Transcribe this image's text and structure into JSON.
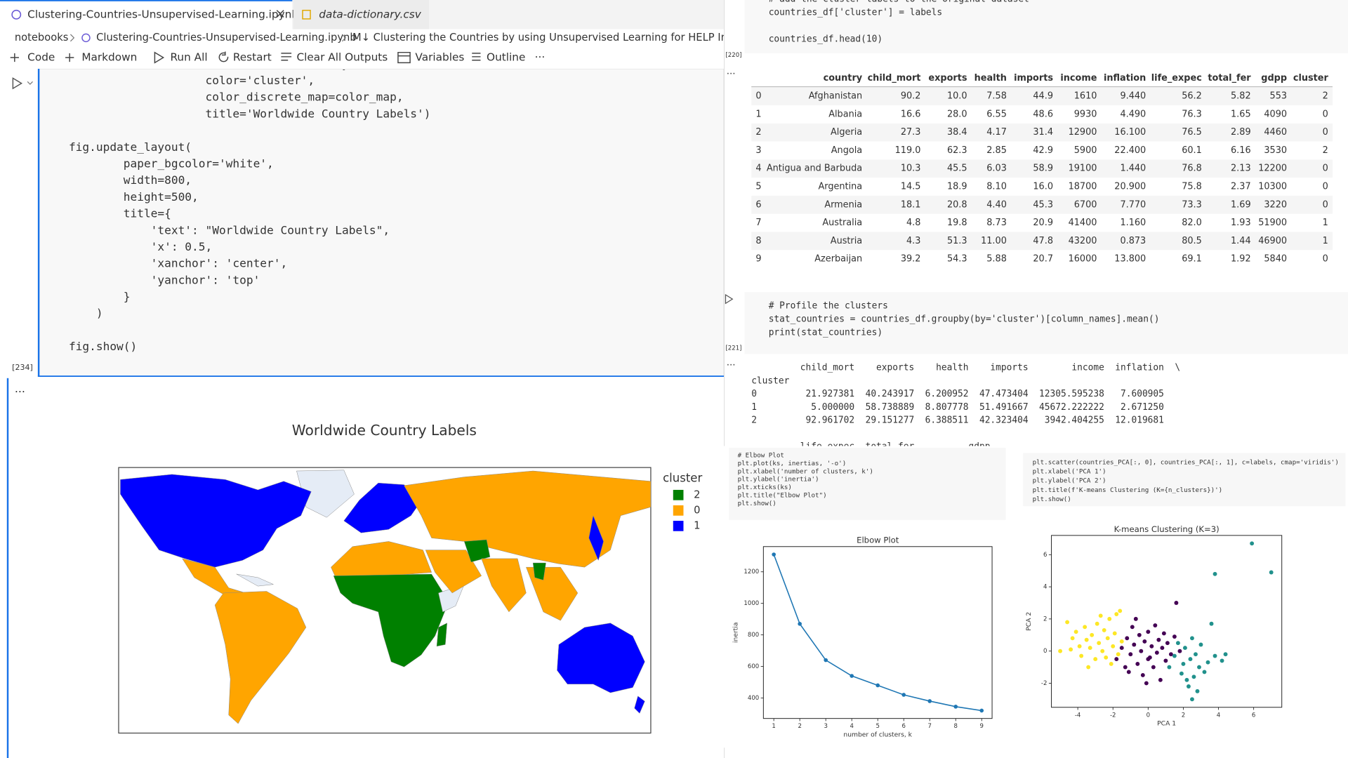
{
  "tabs": [
    "Clustering-Countries-Unsupervised-Learning.ipynb",
    "data-dictionary.csv"
  ],
  "breadcrumb": [
    "notebooks",
    "Clustering-Countries-Unsupervised-Learning.ipynb",
    "M↓ Clustering the Countries by using Unsupervised Learning for HELP International"
  ],
  "toolbar": [
    "Code",
    "Markdown",
    "Run All",
    "Restart",
    "Clear All Outputs",
    "Variables",
    "Outline",
    "···"
  ],
  "left_cell": {
    "code": [
      "                    locationmode='country names',",
      "                    color='cluster',",
      "                    color_discrete_map=color_map,",
      "                    title='Worldwide Country Labels')",
      "",
      "fig.update_layout(",
      "        paper_bgcolor='white',",
      "        width=800,",
      "        height=500,",
      "        title={",
      "            'text': \"Worldwide Country Labels\",",
      "            'x': 0.5,",
      "            'xanchor': 'center',",
      "            'yanchor': 'top'",
      "        }",
      "    )",
      "",
      "fig.show()"
    ],
    "exec_count": "[234]",
    "output_marker": "..."
  },
  "map": {
    "title": "Worldwide Country Labels",
    "legend_title": "cluster",
    "legend": [
      {
        "label": "2",
        "color": "#008000"
      },
      {
        "label": "0",
        "color": "#ffa500"
      },
      {
        "label": "1",
        "color": "#0000ff"
      }
    ]
  },
  "right_cell1": {
    "code": [
      "# add the cluster labels to the original dataset",
      "countries_df['cluster'] = labels",
      "",
      "countries_df.head(10)"
    ],
    "exec_count": "[220]",
    "output_marker": "..."
  },
  "table": {
    "columns": [
      "country",
      "child_mort",
      "exports",
      "health",
      "imports",
      "income",
      "inflation",
      "life_expec",
      "total_fer",
      "gdpp",
      "cluster"
    ],
    "rows": [
      [
        "0",
        "Afghanistan",
        "90.2",
        "10.0",
        "7.58",
        "44.9",
        "1610",
        "9.440",
        "56.2",
        "5.82",
        "553",
        "2"
      ],
      [
        "1",
        "Albania",
        "16.6",
        "28.0",
        "6.55",
        "48.6",
        "9930",
        "4.490",
        "76.3",
        "1.65",
        "4090",
        "0"
      ],
      [
        "2",
        "Algeria",
        "27.3",
        "38.4",
        "4.17",
        "31.4",
        "12900",
        "16.100",
        "76.5",
        "2.89",
        "4460",
        "0"
      ],
      [
        "3",
        "Angola",
        "119.0",
        "62.3",
        "2.85",
        "42.9",
        "5900",
        "22.400",
        "60.1",
        "6.16",
        "3530",
        "2"
      ],
      [
        "4",
        "Antigua and Barbuda",
        "10.3",
        "45.5",
        "6.03",
        "58.9",
        "19100",
        "1.440",
        "76.8",
        "2.13",
        "12200",
        "0"
      ],
      [
        "5",
        "Argentina",
        "14.5",
        "18.9",
        "8.10",
        "16.0",
        "18700",
        "20.900",
        "75.8",
        "2.37",
        "10300",
        "0"
      ],
      [
        "6",
        "Armenia",
        "18.1",
        "20.8",
        "4.40",
        "45.3",
        "6700",
        "7.770",
        "73.3",
        "1.69",
        "3220",
        "0"
      ],
      [
        "7",
        "Australia",
        "4.8",
        "19.8",
        "8.73",
        "20.9",
        "41400",
        "1.160",
        "82.0",
        "1.93",
        "51900",
        "1"
      ],
      [
        "8",
        "Austria",
        "4.3",
        "51.3",
        "11.00",
        "47.8",
        "43200",
        "0.873",
        "80.5",
        "1.44",
        "46900",
        "1"
      ],
      [
        "9",
        "Azerbaijan",
        "39.2",
        "54.3",
        "5.88",
        "20.7",
        "16000",
        "13.800",
        "69.1",
        "1.92",
        "5840",
        "0"
      ]
    ]
  },
  "right_cell2": {
    "code": [
      "# Profile the clusters",
      "stat_countries = countries_df.groupby(by='cluster')[column_names].mean()",
      "print(stat_countries)"
    ],
    "exec_count": "[221]",
    "output_marker": "..."
  },
  "output": [
    "         child_mort    exports    health    imports        income  inflation  \\",
    "cluster",
    "0         21.927381  40.243917  6.200952  47.473404  12305.595238   7.600905",
    "1          5.000000  58.738889  8.807778  51.491667  45672.222222   2.671250",
    "2         92.961702  29.151277  6.388511  42.323404   3942.404255  12.019681",
    "",
    "         life_expec  total_fer          gdpp"
  ],
  "elbow_code": [
    "# Elbow Plot",
    "plt.plot(ks, inertias, '-o')",
    "plt.xlabel('number of clusters, k')",
    "plt.ylabel('inertia')",
    "plt.xticks(ks)",
    "plt.title(\"Elbow Plot\")",
    "plt.show()"
  ],
  "scatter_code": [
    "plt.scatter(countries_PCA[:, 0], countries_PCA[:, 1], c=labels, cmap='viridis')",
    "plt.xlabel('PCA 1')",
    "plt.ylabel('PCA 2')",
    "plt.title(f'K-means Clustering (K={n_clusters})')",
    "plt.show()"
  ],
  "chart_data": [
    {
      "type": "line",
      "title": "Elbow Plot",
      "xlabel": "number of clusters, k",
      "ylabel": "inertia",
      "x": [
        1,
        2,
        3,
        4,
        5,
        6,
        7,
        8,
        9
      ],
      "series": [
        {
          "color": "#1f77b4",
          "values": [
            1310,
            870,
            640,
            540,
            480,
            420,
            380,
            345,
            320
          ]
        }
      ],
      "xlim": [
        0.6,
        9.4
      ],
      "ylim": [
        270,
        1360
      ],
      "xticks": [
        1,
        2,
        3,
        4,
        5,
        6,
        7,
        8,
        9
      ],
      "yticks": [
        400,
        600,
        800,
        1000,
        1200
      ]
    },
    {
      "type": "scatter",
      "title": "K-means Clustering (K=3)",
      "xlabel": "PCA 1",
      "ylabel": "PCA 2",
      "series": [
        {
          "color": "#fde725",
          "x": [
            -5,
            -4.6,
            -4.3,
            -4.1,
            -3.9,
            -3.8,
            -3.6,
            -3.5,
            -3.3,
            -3.2,
            -3.0,
            -2.9,
            -2.8,
            -2.6,
            -2.5,
            -2.4,
            -2.3,
            -2.2,
            -2.0,
            -1.9,
            -1.8,
            -1.7,
            -1.6,
            -1.5,
            -3.4,
            -2.7,
            -4.4,
            -2.1
          ],
          "values": [
            0,
            1.8,
            0.8,
            1.2,
            0.3,
            -0.3,
            1.5,
            0.7,
            0.2,
            1.0,
            -0.5,
            1.7,
            0.5,
            0,
            1.3,
            -0.4,
            0.8,
            2.0,
            0.3,
            1.1,
            2.3,
            -0.2,
            2.5,
            0.6,
            -1.0,
            2.2,
            0.1,
            -0.8
          ]
        },
        {
          "color": "#440154",
          "x": [
            -1.8,
            -1.5,
            -1.3,
            -1.2,
            -1.0,
            -0.9,
            -0.8,
            -0.6,
            -0.5,
            -0.4,
            -0.3,
            -0.2,
            0,
            0.1,
            0.2,
            0.3,
            0.4,
            0.5,
            0.6,
            0.7,
            0.8,
            0.9,
            1.0,
            1.1,
            1.3,
            1.5,
            1.6,
            -0.1,
            -0.7,
            1.8,
            -1.1,
            0
          ],
          "values": [
            -0.5,
            0.2,
            -1.0,
            0.8,
            -0.2,
            1.5,
            0.4,
            -0.8,
            1.0,
            0,
            -1.5,
            0.6,
            1.2,
            -0.4,
            0.3,
            -1.0,
            1.6,
            -0.1,
            0.7,
            -1.8,
            0.2,
            1.1,
            -0.6,
            0.5,
            -0.2,
            0.9,
            3.0,
            -2.0,
            2.0,
            0,
            -1.3,
            -0.5
          ]
        },
        {
          "color": "#21918c",
          "x": [
            1.2,
            1.5,
            1.7,
            1.9,
            2.0,
            2.1,
            2.2,
            2.3,
            2.4,
            2.5,
            2.6,
            2.7,
            2.8,
            2.9,
            3.0,
            3.2,
            3.4,
            3.6,
            3.8,
            4.2,
            4.4,
            2.5,
            3.8,
            5.9,
            7.0
          ],
          "values": [
            -1.0,
            -0.3,
            0.5,
            -1.4,
            -0.8,
            0.2,
            -1.8,
            -2.2,
            -0.5,
            0.8,
            -1.6,
            -0.2,
            -2.5,
            -1.0,
            0.4,
            -1.3,
            -0.7,
            1.7,
            -0.3,
            -0.6,
            -0.2,
            -3.0,
            4.8,
            6.7,
            4.9
          ]
        }
      ],
      "xlim": [
        -5.5,
        7.6
      ],
      "ylim": [
        -3.5,
        7.2
      ],
      "xticks": [
        -4,
        -2,
        0,
        2,
        4,
        6
      ],
      "yticks": [
        -2,
        0,
        2,
        4,
        6
      ]
    }
  ]
}
